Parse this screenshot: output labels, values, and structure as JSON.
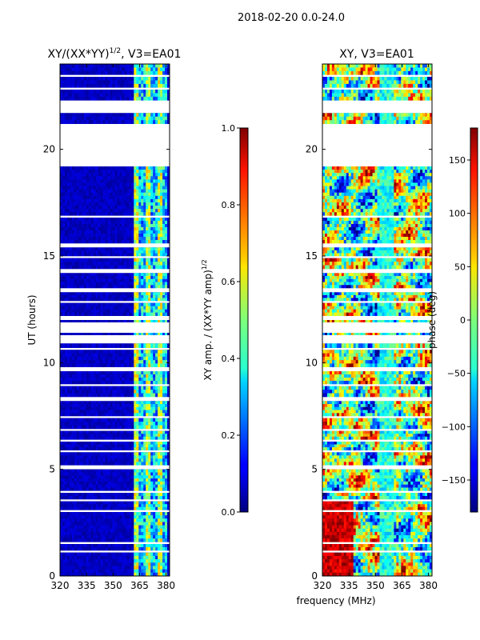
{
  "figure_title": "2018-02-20 0.0-24.0",
  "shared_xlabel": "frequency (MHz)",
  "chart_data": [
    {
      "type": "heatmap",
      "title": "XY/(XX*YY)",
      "title_exp": "1/2",
      "title_suffix": ", V3=EA01",
      "xlabel": "",
      "ylabel": "UT (hours)",
      "xlim": [
        320,
        382
      ],
      "ylim": [
        0,
        24
      ],
      "xticks": [
        "320",
        "335",
        "350",
        "365",
        "380"
      ],
      "xtick_values": [
        320,
        335,
        350,
        365,
        380
      ],
      "yticks": [
        "0",
        "5",
        "10",
        "15",
        "20"
      ],
      "ytick_values": [
        0,
        5,
        10,
        15,
        20
      ],
      "data_hour_ranges": [
        [
          0.0,
          1.1
        ],
        [
          1.2,
          1.5
        ],
        [
          1.6,
          3.0
        ],
        [
          3.1,
          3.5
        ],
        [
          3.6,
          3.9
        ],
        [
          4.0,
          5.0
        ],
        [
          5.2,
          5.8
        ],
        [
          5.9,
          6.3
        ],
        [
          6.4,
          6.8
        ],
        [
          6.9,
          7.4
        ],
        [
          7.5,
          8.2
        ],
        [
          8.4,
          8.9
        ],
        [
          9.0,
          9.6
        ],
        [
          9.8,
          10.6
        ],
        [
          10.7,
          10.9
        ],
        [
          11.3,
          11.4
        ],
        [
          11.9,
          12.0
        ],
        [
          12.2,
          12.8
        ],
        [
          12.9,
          13.3
        ],
        [
          13.5,
          14.2
        ],
        [
          14.4,
          14.9
        ],
        [
          15.0,
          15.4
        ],
        [
          15.6,
          16.8
        ],
        [
          16.9,
          19.2
        ],
        [
          21.2,
          21.7
        ],
        [
          22.3,
          22.8
        ],
        [
          22.9,
          23.4
        ],
        [
          23.5,
          24.0
        ]
      ],
      "bright_channel_range_MHz": [
        362,
        380
      ],
      "colorbar": {
        "label": "XY amp. / (XX*YY amp)",
        "label_exp": "1/2",
        "min": 0.0,
        "max": 1.0,
        "ticks": [
          "0.0",
          "0.2",
          "0.4",
          "0.6",
          "0.8",
          "1.0"
        ],
        "tick_values": [
          0.0,
          0.2,
          0.4,
          0.6,
          0.8,
          1.0
        ],
        "colormap": "jet"
      }
    },
    {
      "type": "heatmap",
      "title": "XY, V3=EA01",
      "xlabel": "frequency (MHz)",
      "ylabel": "",
      "xlim": [
        320,
        382
      ],
      "ylim": [
        0,
        24
      ],
      "xticks": [
        "320",
        "335",
        "350",
        "365",
        "380"
      ],
      "xtick_values": [
        320,
        335,
        350,
        365,
        380
      ],
      "yticks": [
        "0",
        "5",
        "10",
        "15",
        "20"
      ],
      "ytick_values": [
        0,
        5,
        10,
        15,
        20
      ],
      "data_hour_ranges": [
        [
          0.0,
          1.1
        ],
        [
          1.2,
          1.5
        ],
        [
          1.6,
          3.0
        ],
        [
          3.1,
          3.5
        ],
        [
          3.6,
          3.9
        ],
        [
          4.0,
          5.0
        ],
        [
          5.2,
          5.8
        ],
        [
          5.9,
          6.3
        ],
        [
          6.4,
          6.8
        ],
        [
          6.9,
          7.4
        ],
        [
          7.5,
          8.2
        ],
        [
          8.4,
          8.9
        ],
        [
          9.0,
          9.6
        ],
        [
          9.8,
          10.6
        ],
        [
          10.7,
          10.9
        ],
        [
          11.3,
          11.4
        ],
        [
          11.9,
          12.0
        ],
        [
          12.2,
          12.8
        ],
        [
          12.9,
          13.3
        ],
        [
          13.5,
          14.2
        ],
        [
          14.4,
          14.9
        ],
        [
          15.0,
          15.4
        ],
        [
          15.6,
          16.8
        ],
        [
          16.9,
          19.2
        ],
        [
          21.2,
          21.7
        ],
        [
          22.3,
          22.8
        ],
        [
          22.9,
          23.4
        ],
        [
          23.5,
          24.0
        ]
      ],
      "colorbar": {
        "label": "phase (deg)",
        "min": -180,
        "max": 180,
        "ticks": [
          "150",
          "100",
          "50",
          "0",
          "−50",
          "−100",
          "−150"
        ],
        "tick_values": [
          150,
          100,
          50,
          0,
          -50,
          -100,
          -150
        ],
        "colormap": "jet"
      }
    }
  ]
}
